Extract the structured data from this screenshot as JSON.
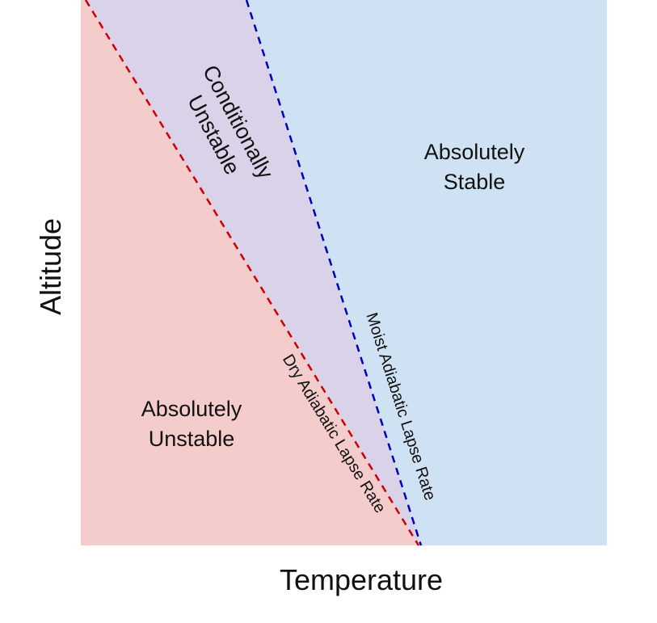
{
  "axes": {
    "x_label": "Temperature",
    "y_label": "Altitude"
  },
  "regions": {
    "absolutely_unstable": {
      "line1": "Absolutely",
      "line2": "Unstable",
      "color": "#f4cccc"
    },
    "conditionally_unstable": {
      "line1": "Conditionally",
      "line2": "Unstable",
      "color": "#d9d2e9"
    },
    "absolutely_stable": {
      "line1": "Absolutely",
      "line2": "Stable",
      "color": "#cfe2f3"
    }
  },
  "lines": {
    "dry_adiabatic": {
      "label": "Dry Adiabatic Lapse Rate",
      "color": "#cc0000"
    },
    "moist_adiabatic": {
      "label": "Moist Adiabatic Lapse Rate",
      "color": "#0000bb"
    }
  }
}
